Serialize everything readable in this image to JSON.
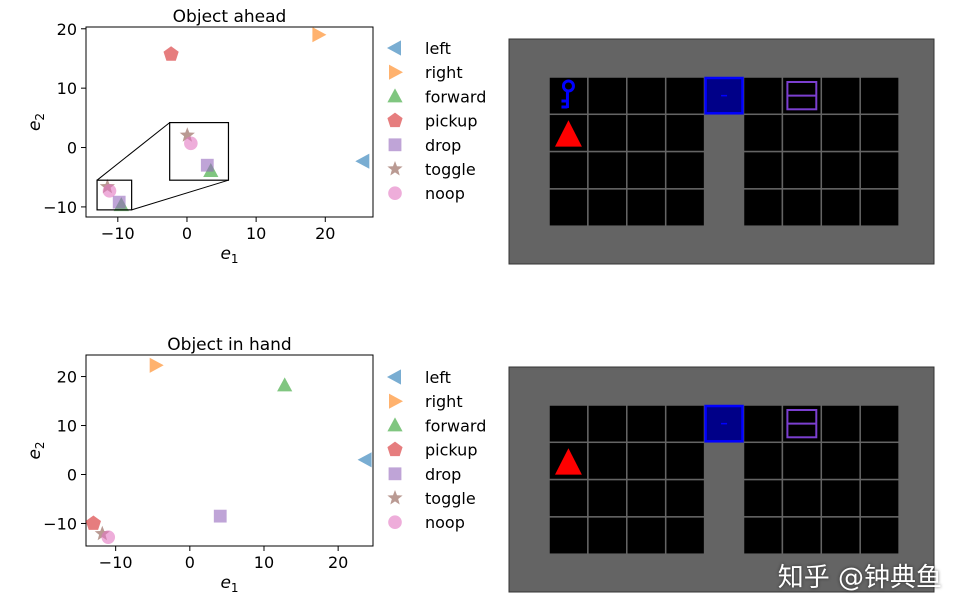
{
  "chart_data": [
    {
      "type": "scatter",
      "title": "Object ahead",
      "xlabel": "e1",
      "ylabel": "e2",
      "xlim": [
        -14.6,
        26.9
      ],
      "ylim": [
        -11.7,
        20.3
      ],
      "xticks": [
        -10,
        0,
        10,
        20
      ],
      "yticks": [
        -10,
        0,
        10,
        20
      ],
      "grid": false,
      "legend": "right-outside",
      "series": [
        {
          "name": "left",
          "marker": "triangle-left",
          "color": "#1f77b4",
          "x": [
            25.5
          ],
          "y": [
            -2.3
          ]
        },
        {
          "name": "right",
          "marker": "triangle-right",
          "color": "#ff7f0e",
          "x": [
            19.0
          ],
          "y": [
            19.0
          ]
        },
        {
          "name": "forward",
          "marker": "triangle-up",
          "color": "#2ca02c",
          "x": [
            -9.5
          ],
          "y": [
            -9.7
          ]
        },
        {
          "name": "pickup",
          "marker": "pentagon",
          "color": "#d62728",
          "x": [
            -2.3
          ],
          "y": [
            15.7
          ]
        },
        {
          "name": "drop",
          "marker": "square",
          "color": "#9467bd",
          "x": [
            -9.8
          ],
          "y": [
            -9.2
          ]
        },
        {
          "name": "toggle",
          "marker": "star",
          "color": "#8c564b",
          "x": [
            -11.5
          ],
          "y": [
            -6.6
          ]
        },
        {
          "name": "noop",
          "marker": "circle",
          "color": "#e377c2",
          "x": [
            -11.2
          ],
          "y": [
            -7.3
          ]
        }
      ],
      "inset": {
        "source_xlim": [
          -13,
          -8
        ],
        "source_ylim": [
          -10.5,
          -5.5
        ],
        "display_xlim": [
          -2.5,
          6
        ],
        "display_ylim": [
          -5.5,
          4.2
        ]
      }
    },
    {
      "type": "scatter",
      "title": "Object in hand",
      "xlabel": "e1",
      "ylabel": "e2",
      "xlim": [
        -14,
        24.7
      ],
      "ylim": [
        -14.6,
        24.4
      ],
      "xticks": [
        -10,
        0,
        10,
        20
      ],
      "yticks": [
        -10,
        0,
        10,
        20
      ],
      "grid": false,
      "legend": "right-outside",
      "series": [
        {
          "name": "left",
          "marker": "triangle-left",
          "color": "#1f77b4",
          "x": [
            23.7
          ],
          "y": [
            3.0
          ]
        },
        {
          "name": "right",
          "marker": "triangle-right",
          "color": "#ff7f0e",
          "x": [
            -4.6
          ],
          "y": [
            22.3
          ]
        },
        {
          "name": "forward",
          "marker": "triangle-up",
          "color": "#2ca02c",
          "x": [
            12.8
          ],
          "y": [
            18.2
          ]
        },
        {
          "name": "pickup",
          "marker": "pentagon",
          "color": "#d62728",
          "x": [
            -13.0
          ],
          "y": [
            -10.0
          ]
        },
        {
          "name": "drop",
          "marker": "square",
          "color": "#9467bd",
          "x": [
            4.1
          ],
          "y": [
            -8.5
          ]
        },
        {
          "name": "toggle",
          "marker": "star",
          "color": "#8c564b",
          "x": [
            -11.8
          ],
          "y": [
            -12.1
          ]
        },
        {
          "name": "noop",
          "marker": "circle",
          "color": "#e377c2",
          "x": [
            -11.0
          ],
          "y": [
            -12.8
          ]
        }
      ]
    }
  ],
  "gridworlds": [
    {
      "cols": 9,
      "rows": 4,
      "wall_col": 4,
      "door": {
        "col": 4,
        "row": 0,
        "color": "#0000ff"
      },
      "key": {
        "col": 0,
        "row": 0,
        "color": "#0000ff"
      },
      "agent": {
        "col": 0,
        "row": 1,
        "color": "#ff0000"
      },
      "box": {
        "col": 6,
        "row": 0,
        "color": "#7b3fd0"
      }
    },
    {
      "cols": 9,
      "rows": 4,
      "wall_col": 4,
      "door": {
        "col": 4,
        "row": 0,
        "color": "#0000ff"
      },
      "key": null,
      "agent": {
        "col": 0,
        "row": 1,
        "color": "#ff0000"
      },
      "box": {
        "col": 6,
        "row": 0,
        "color": "#7b3fd0"
      }
    }
  ],
  "watermark": "知乎 @钟典鱼"
}
